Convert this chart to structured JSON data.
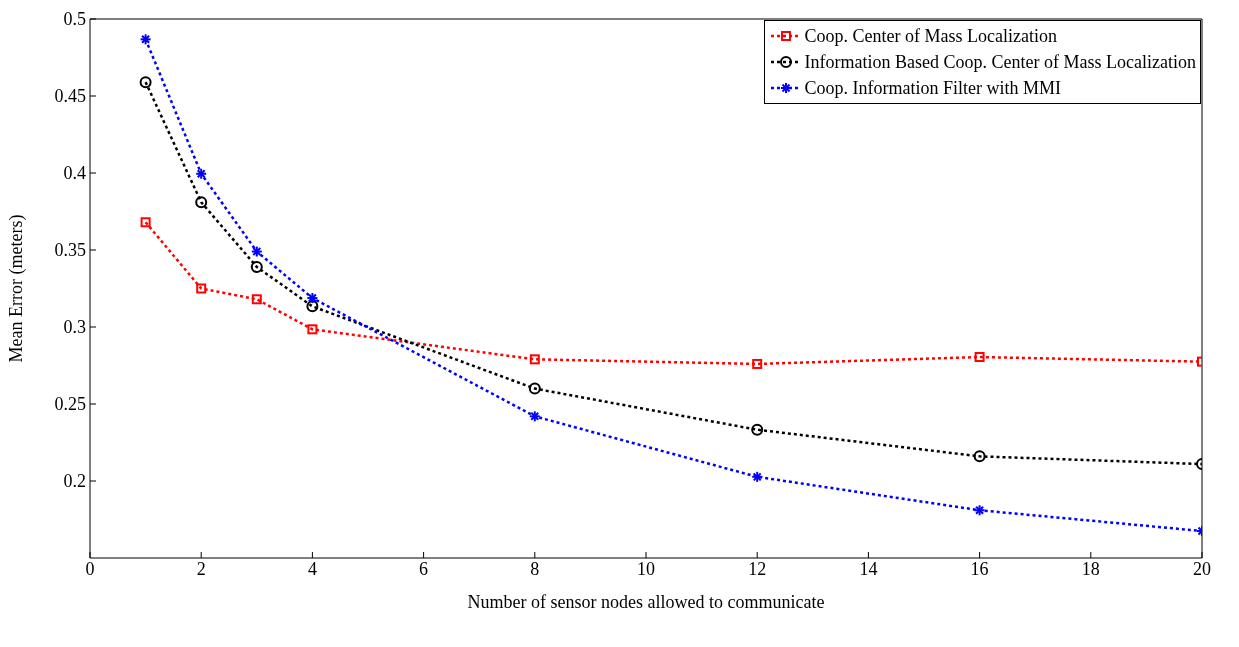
{
  "chart_data": {
    "type": "line",
    "xlabel": "Number of sensor nodes allowed to communicate",
    "ylabel": "Mean Error (meters)",
    "x": [
      1,
      2,
      3,
      4,
      8,
      12,
      16,
      20
    ],
    "xlim": [
      0,
      20
    ],
    "xticks": [
      0,
      2,
      4,
      6,
      8,
      10,
      12,
      14,
      16,
      18,
      20
    ],
    "ylim": [
      0.15,
      0.5
    ],
    "yticks": [
      0.2,
      0.25,
      0.3,
      0.35,
      0.4,
      0.45,
      0.5
    ],
    "grid": false,
    "legend": "top right",
    "line_style": "dotted",
    "series": [
      {
        "name": "Coop. Center of Mass Localization",
        "color": "#ff0000",
        "marker": "square",
        "values": [
          0.368,
          0.325,
          0.318,
          0.2985,
          0.279,
          0.276,
          0.2805,
          0.2775
        ]
      },
      {
        "name": "Information Based Coop. Center of Mass Localization",
        "color": "#000000",
        "marker": "circle",
        "values": [
          0.459,
          0.381,
          0.339,
          0.3134,
          0.26,
          0.2333,
          0.216,
          0.211
        ]
      },
      {
        "name": "Coop. Information Filter with MMI",
        "color": "#0000ff",
        "marker": "cross",
        "values": [
          0.4868,
          0.3995,
          0.349,
          0.3188,
          0.242,
          0.2027,
          0.181,
          0.1675
        ]
      }
    ]
  }
}
